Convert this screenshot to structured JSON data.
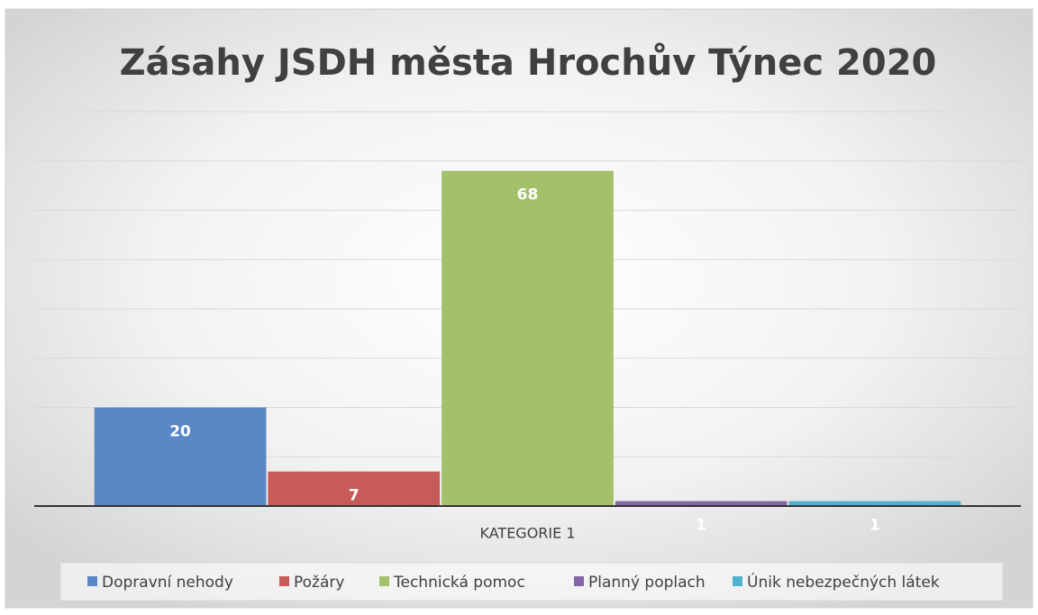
{
  "chart_data": {
    "type": "bar",
    "title": "Zásahy JSDH města Hrochův Týnec 2020",
    "categories": [
      "KATEGORIE 1"
    ],
    "series": [
      {
        "name": "Dopravní nehody",
        "color": "#5a87c6",
        "values": [
          20
        ]
      },
      {
        "name": "Požáry",
        "color": "#c85a58",
        "values": [
          7
        ]
      },
      {
        "name": "Technická pomoc",
        "color": "#a2c16a",
        "values": [
          68
        ]
      },
      {
        "name": "Planný poplach",
        "color": "#8467a6",
        "values": [
          1
        ]
      },
      {
        "name": "Únik nebezpečných látek",
        "color": "#4fb2ce",
        "values": [
          1
        ]
      }
    ],
    "ylim": [
      0,
      80
    ],
    "yticks": [
      0,
      10,
      20,
      30,
      40,
      50,
      60,
      70,
      80
    ],
    "grid": true,
    "legend": "bottom"
  }
}
